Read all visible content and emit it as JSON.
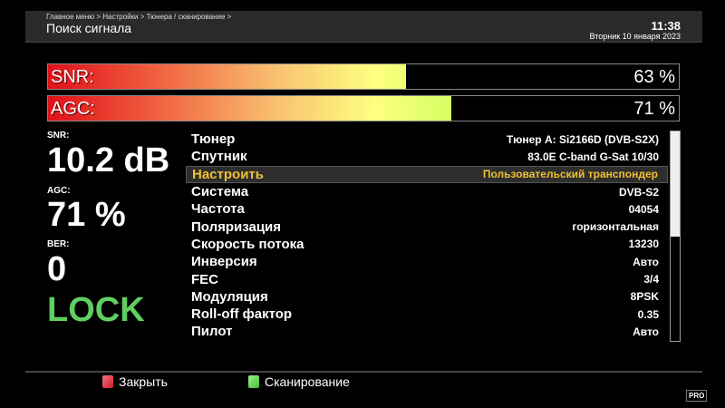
{
  "header": {
    "breadcrumb": "Главное меню > Настройки > Тюнера / сканирование >",
    "title": "Поиск сигнала",
    "time": "11:38",
    "date": "Вторник 10 января 2023"
  },
  "bars": [
    {
      "label": "SNR:",
      "value_text": "63 %",
      "percent": 63
    },
    {
      "label": "AGC:",
      "value_text": "71 %",
      "percent": 71
    }
  ],
  "stats": {
    "snr_label": "SNR:",
    "snr_value": "10.2 dB",
    "agc_label": "AGC:",
    "agc_value": "71 %",
    "ber_label": "BER:",
    "ber_value": "0",
    "lock": "LOCK"
  },
  "settings": [
    {
      "key": "Тюнер",
      "value": "Тюнер A: Si2166D (DVB-S2X)"
    },
    {
      "key": "Спутник",
      "value": "83.0E C-band G-Sat 10/30"
    },
    {
      "key": "Настроить",
      "value": "Пользовательский транспондер",
      "selected": true
    },
    {
      "key": "Система",
      "value": "DVB-S2"
    },
    {
      "key": "Частота",
      "value": "04054"
    },
    {
      "key": "Поляризация",
      "value": "горизонтальная"
    },
    {
      "key": "Скорость потока",
      "value": "13230"
    },
    {
      "key": "Инверсия",
      "value": "Авто"
    },
    {
      "key": "FEC",
      "value": "3/4"
    },
    {
      "key": "Модуляция",
      "value": "8PSK"
    },
    {
      "key": "Roll-off фактор",
      "value": "0.35"
    },
    {
      "key": "Пилот",
      "value": "Авто"
    }
  ],
  "footer": {
    "close_label": "Закрыть",
    "close_color": "#d0202a",
    "scan_label": "Сканирование",
    "scan_color": "#40c030"
  },
  "logo": "PRO TV"
}
